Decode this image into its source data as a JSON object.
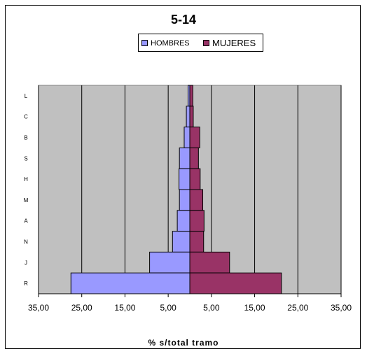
{
  "chart_data": {
    "type": "bar",
    "orientation": "horizontal",
    "title": "5-14",
    "xlabel": "% s/total tramo",
    "ylabel": "",
    "categories": [
      "L",
      "C",
      "B",
      "S",
      "H",
      "M",
      "A",
      "N",
      "J",
      "R"
    ],
    "series": [
      {
        "name": "HOMBRES",
        "color": "#9999ff",
        "side": "left",
        "values": [
          0.4,
          0.8,
          1.3,
          2.4,
          2.5,
          2.4,
          2.9,
          4.0,
          9.3,
          27.5
        ]
      },
      {
        "name": "MUJERES",
        "color": "#993366",
        "side": "right",
        "values": [
          0.7,
          0.8,
          2.3,
          2.0,
          2.4,
          3.0,
          3.3,
          3.2,
          9.2,
          21.2
        ]
      }
    ],
    "xlim": [
      -35,
      35
    ],
    "xtick_values": [
      -35,
      -25,
      -15,
      -5,
      5,
      15,
      25,
      35
    ],
    "xtick_labels": [
      "35,00",
      "25,00",
      "15,00",
      "5,00",
      "5,00",
      "15,00",
      "25,00",
      "35,00"
    ],
    "plot_background": "#c0c0c0",
    "grid": "vertical",
    "legend_position": "top"
  }
}
